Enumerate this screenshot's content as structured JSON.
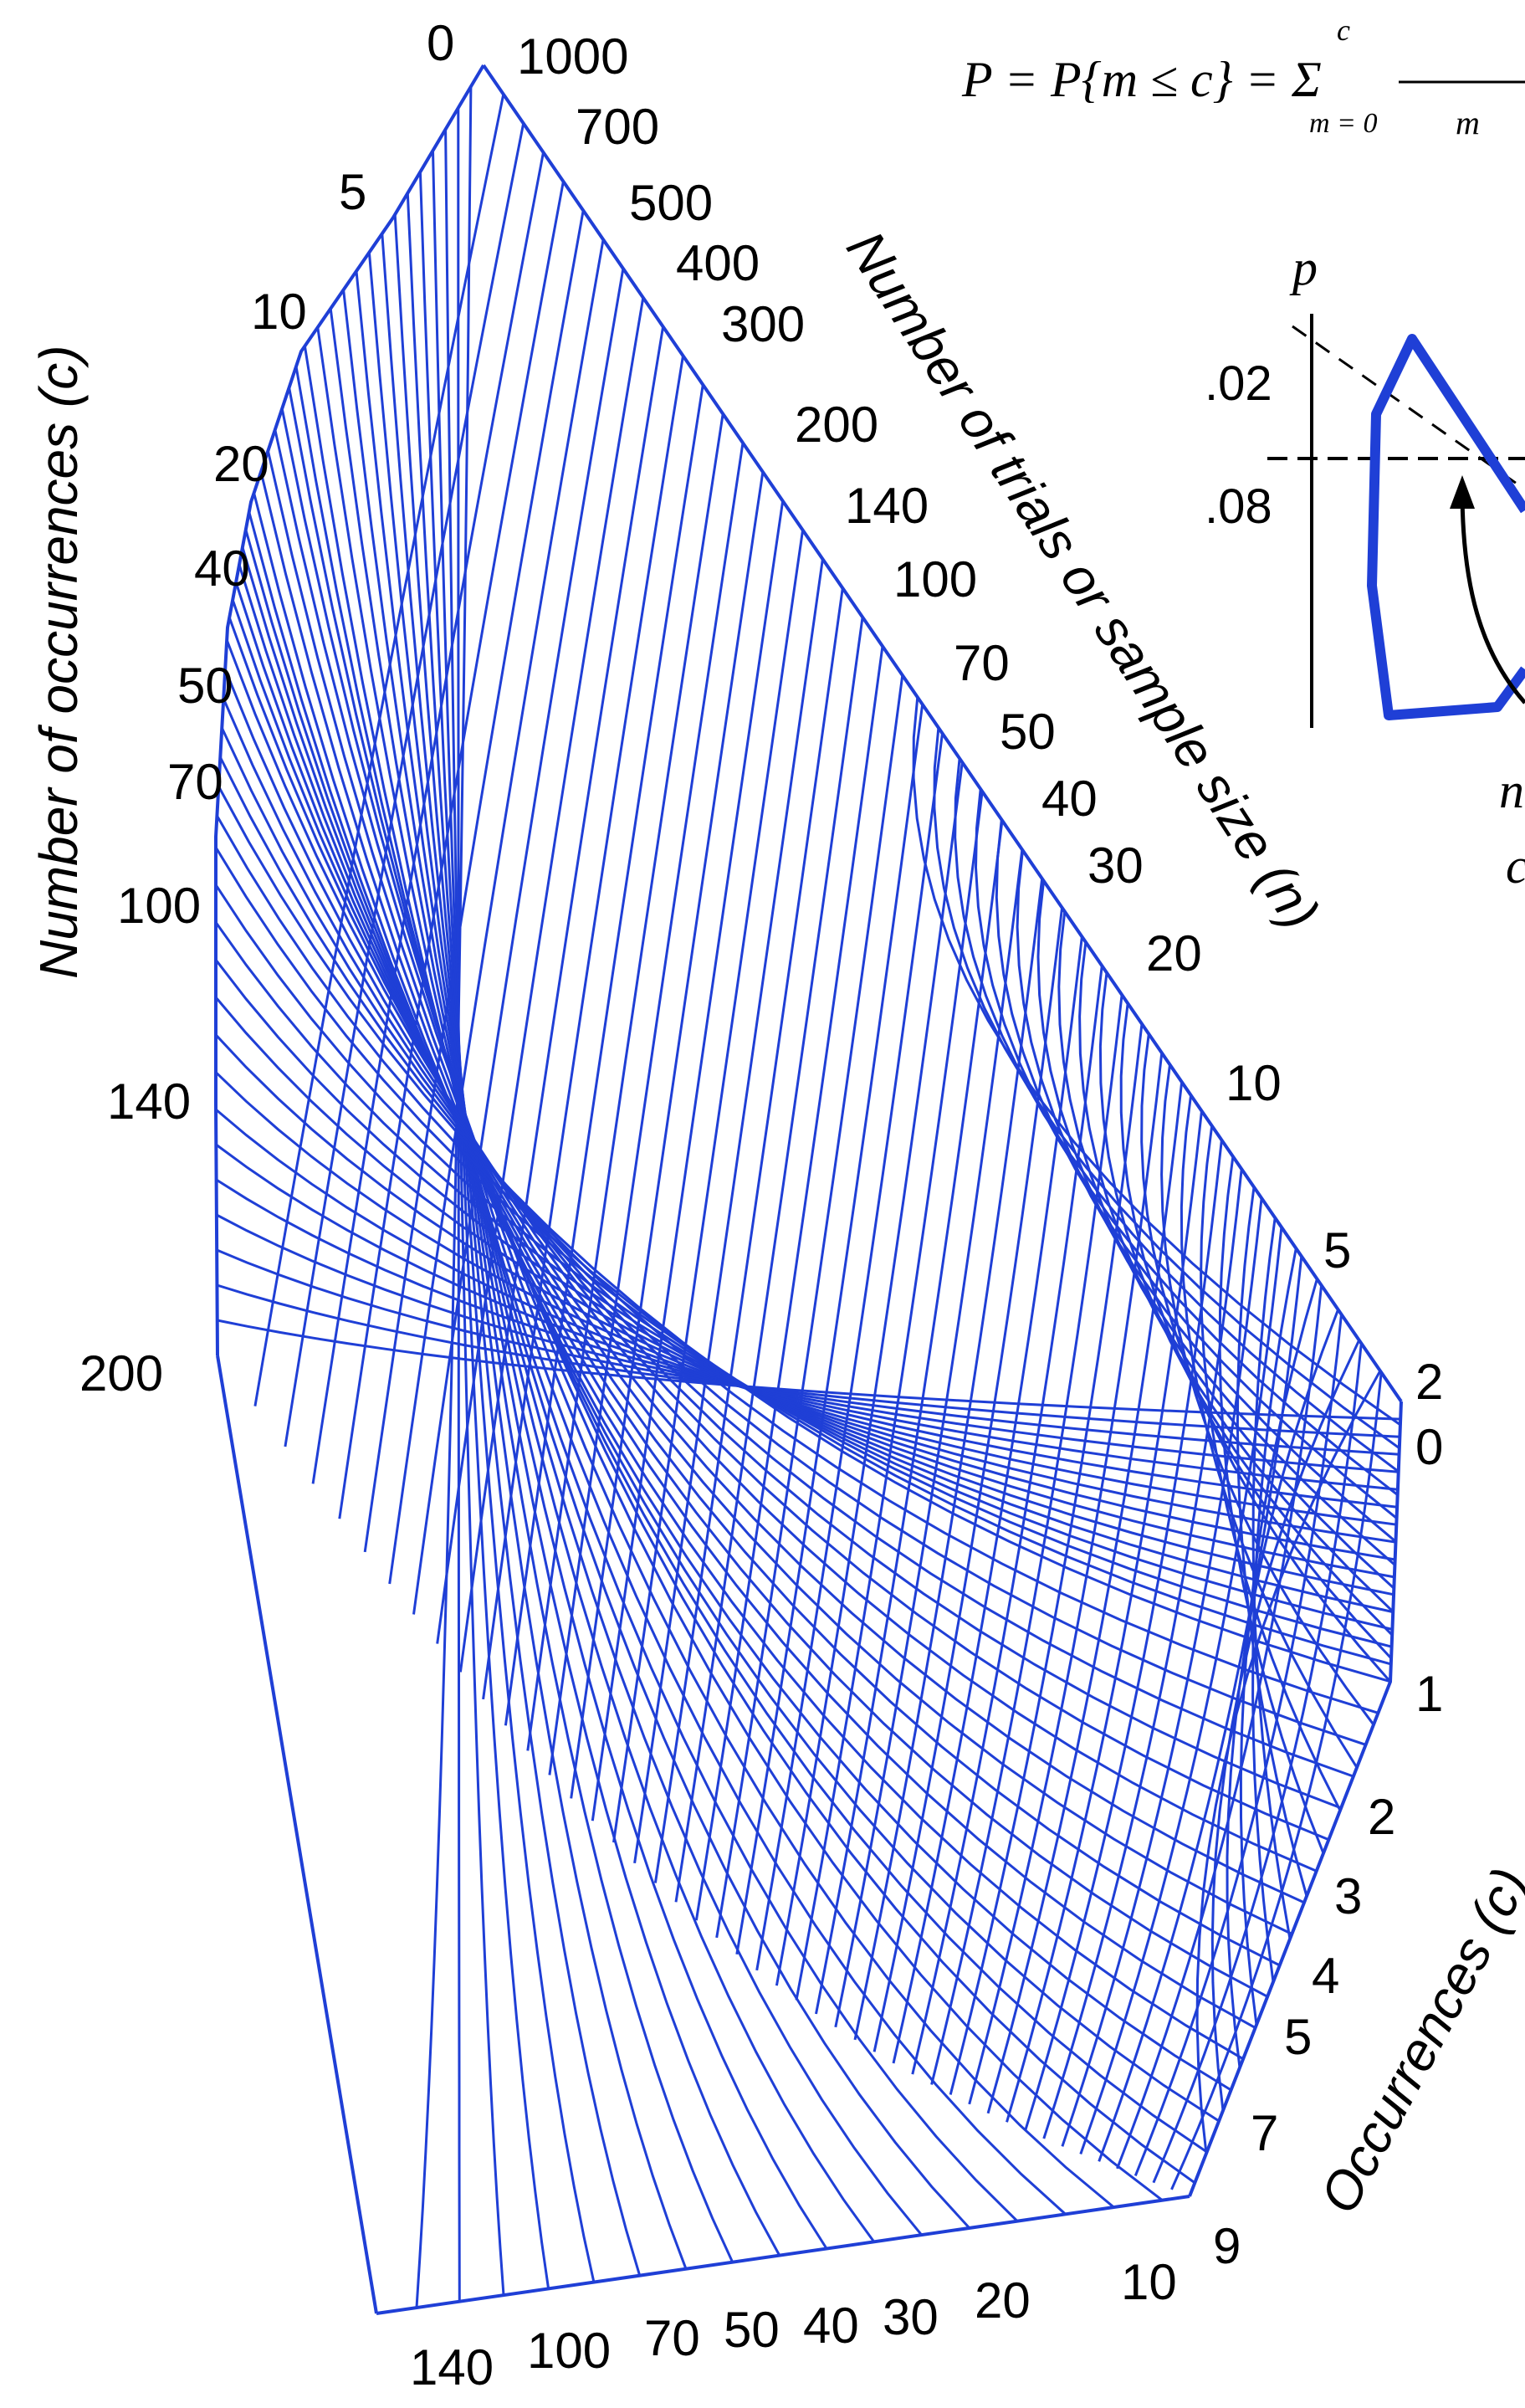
{
  "colors": {
    "nomograph_blue": "#1f3fd6",
    "ink": "#000000",
    "paper": "#ffffff"
  },
  "formula": {
    "lhs": "P = P{m ≤ c} = Σ",
    "sum_top": "c",
    "sum_bottom": "m = 0",
    "trailing": "m"
  },
  "left_axis": {
    "title": "Number of occurrences (c)",
    "ticks": [
      "0",
      "5",
      "10",
      "20",
      "40",
      "50",
      "70",
      "100",
      "140",
      "200"
    ]
  },
  "top_axis": {
    "title": "Number of trials or sample size (n)",
    "ticks": [
      "1000",
      "700",
      "500",
      "400",
      "300",
      "200",
      "140",
      "100",
      "70",
      "50",
      "40",
      "30",
      "20",
      "10",
      "5",
      "2"
    ]
  },
  "right_axis": {
    "title": "Occurrences (c)",
    "ticks": [
      "0",
      "1",
      "2",
      "3",
      "4",
      "5",
      "7",
      "9"
    ]
  },
  "bottom_axis": {
    "ticks": [
      "10",
      "20",
      "30",
      "40",
      "50",
      "70",
      "100",
      "140"
    ]
  },
  "inset": {
    "y_label": "p",
    "ticks": [
      ".02",
      ".08"
    ],
    "caption_fragment_1": "n",
    "caption_fragment_2": "c"
  }
}
